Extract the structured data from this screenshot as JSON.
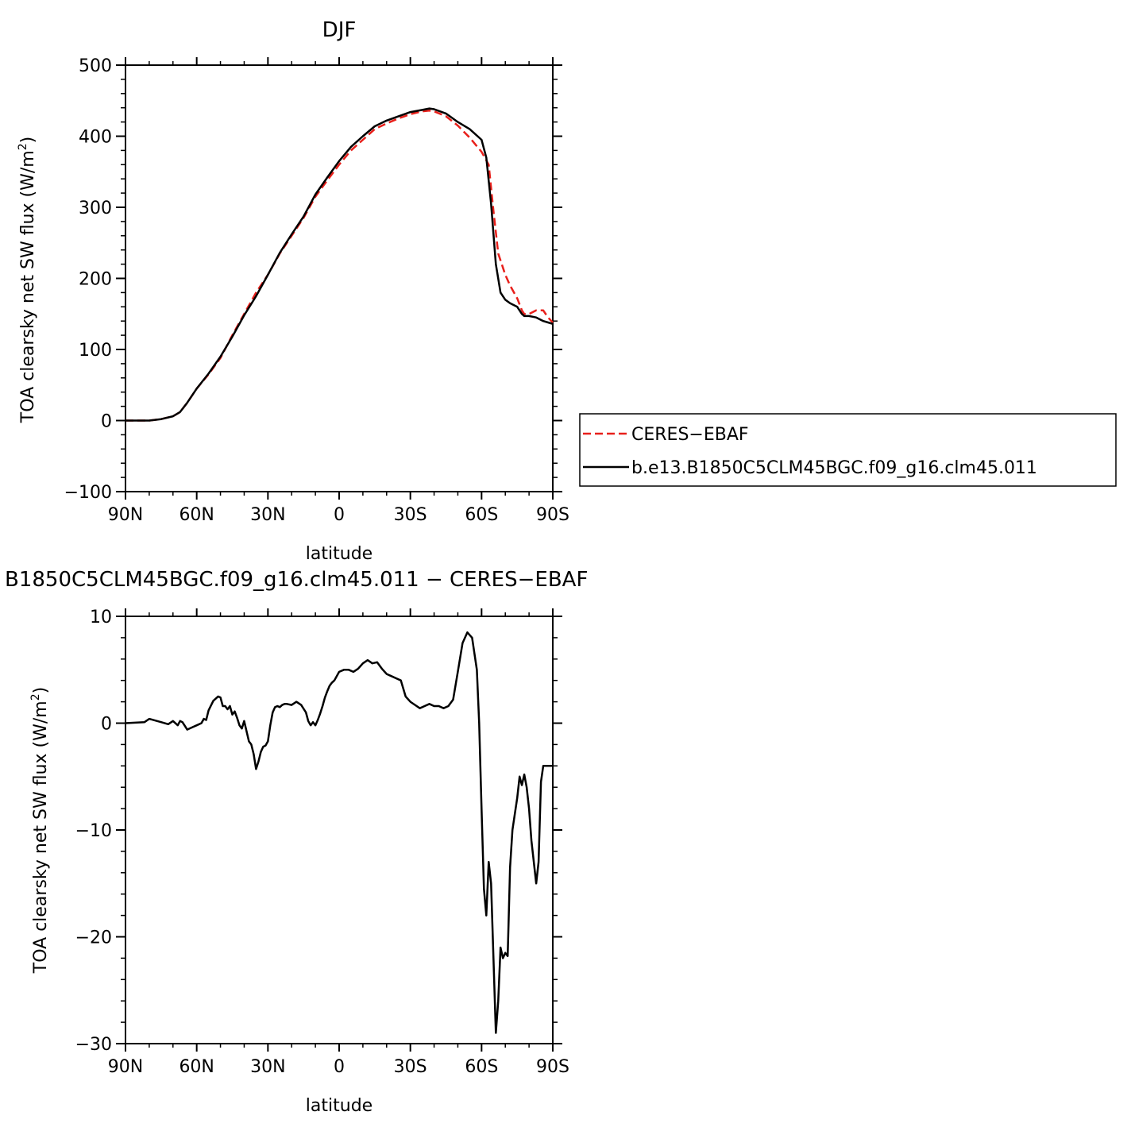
{
  "chart_data": [
    {
      "type": "line",
      "title": "DJF",
      "xlabel": "latitude",
      "ylabel": "TOA clearsky net SW flux (W/m",
      "ylabel_sup": "2",
      "ylabel_end": ")",
      "xlim": [
        90,
        -90
      ],
      "ylim": [
        -100,
        500
      ],
      "x_ticks": [
        {
          "value": 90,
          "label": "90N"
        },
        {
          "value": 60,
          "label": "60N"
        },
        {
          "value": 30,
          "label": "30N"
        },
        {
          "value": 0,
          "label": "0"
        },
        {
          "value": -30,
          "label": "30S"
        },
        {
          "value": -60,
          "label": "60S"
        },
        {
          "value": -90,
          "label": "90S"
        }
      ],
      "y_ticks": [
        {
          "value": 500,
          "label": "500"
        },
        {
          "value": 400,
          "label": "400"
        },
        {
          "value": 300,
          "label": "300"
        },
        {
          "value": 200,
          "label": "200"
        },
        {
          "value": 100,
          "label": "100"
        },
        {
          "value": 0,
          "label": "0"
        },
        {
          "value": -100,
          "label": "−100"
        }
      ],
      "grid": false,
      "legend_position": "outside-right",
      "series": [
        {
          "name": "CERES−EBAF",
          "color": "#e8201b",
          "dash": "dashed",
          "x": [
            90,
            85,
            80,
            75,
            70,
            67,
            64,
            60,
            55,
            50,
            45,
            40,
            35,
            30,
            25,
            20,
            15,
            10,
            5,
            0,
            -5,
            -10,
            -15,
            -20,
            -25,
            -30,
            -35,
            -38,
            -40,
            -45,
            -50,
            -55,
            -60,
            -63,
            -65,
            -67,
            -70,
            -72,
            -75,
            -77,
            -78,
            -80,
            -83,
            -86,
            -88,
            -90
          ],
          "y": [
            0,
            0,
            0,
            2,
            6,
            12,
            25,
            45,
            65,
            88,
            120,
            150,
            180,
            205,
            235,
            260,
            285,
            315,
            338,
            360,
            380,
            395,
            410,
            418,
            425,
            431,
            435,
            436,
            435,
            428,
            415,
            398,
            378,
            360,
            295,
            235,
            205,
            190,
            172,
            155,
            150,
            150,
            155,
            155,
            145,
            138
          ]
        },
        {
          "name": "b.e13.B1850C5CLM45BGC.f09_g16.clm45.011",
          "color": "#000000",
          "dash": "solid",
          "x": [
            90,
            85,
            80,
            75,
            70,
            67,
            64,
            60,
            55,
            50,
            45,
            40,
            35,
            30,
            25,
            20,
            15,
            10,
            5,
            0,
            -5,
            -10,
            -15,
            -20,
            -25,
            -30,
            -35,
            -38,
            -40,
            -45,
            -50,
            -55,
            -60,
            -62,
            -64,
            -66,
            -68,
            -70,
            -72,
            -75,
            -77,
            -78,
            -80,
            -83,
            -86,
            -88,
            -90
          ],
          "y": [
            0,
            0,
            0,
            2,
            6,
            12,
            25,
            45,
            66,
            90,
            118,
            148,
            175,
            205,
            236,
            262,
            287,
            318,
            342,
            365,
            385,
            400,
            414,
            422,
            428,
            434,
            437,
            439,
            438,
            432,
            420,
            410,
            395,
            370,
            305,
            220,
            180,
            170,
            165,
            160,
            150,
            147,
            147,
            145,
            140,
            138,
            136
          ]
        }
      ]
    },
    {
      "type": "line",
      "title": "B1850C5CLM45BGC.f09_g16.clm45.011 − CERES−EBAF",
      "xlabel": "latitude",
      "ylabel": "TOA clearsky net SW flux (W/m",
      "ylabel_sup": "2",
      "ylabel_end": ")",
      "xlim": [
        90,
        -90
      ],
      "ylim": [
        -30,
        10
      ],
      "x_ticks": [
        {
          "value": 90,
          "label": "90N"
        },
        {
          "value": 60,
          "label": "60N"
        },
        {
          "value": 30,
          "label": "30N"
        },
        {
          "value": 0,
          "label": "0"
        },
        {
          "value": -30,
          "label": "30S"
        },
        {
          "value": -60,
          "label": "60S"
        },
        {
          "value": -90,
          "label": "90S"
        }
      ],
      "y_ticks": [
        {
          "value": 10,
          "label": "10"
        },
        {
          "value": 0,
          "label": "0"
        },
        {
          "value": -10,
          "label": "−10"
        },
        {
          "value": -20,
          "label": "−20"
        },
        {
          "value": -30,
          "label": "−30"
        }
      ],
      "grid": false,
      "series": [
        {
          "name": "",
          "color": "#000000",
          "dash": "solid",
          "x": [
            90,
            82,
            80,
            75,
            72,
            70,
            68,
            67,
            66,
            64,
            62,
            60,
            58,
            57,
            56,
            55,
            53,
            51,
            50,
            49,
            48,
            47,
            46,
            45,
            44,
            43,
            42,
            41,
            40,
            38,
            37,
            36,
            35,
            34,
            33,
            32,
            31,
            30,
            29,
            28,
            27,
            26,
            25,
            24,
            23,
            22,
            20,
            18,
            16,
            14,
            13,
            12,
            11,
            10,
            9,
            8,
            7,
            6,
            5,
            4,
            3,
            2,
            0,
            -2,
            -4,
            -6,
            -8,
            -10,
            -12,
            -14,
            -16,
            -18,
            -20,
            -22,
            -24,
            -26,
            -28,
            -30,
            -32,
            -34,
            -36,
            -38,
            -40,
            -42,
            -44,
            -46,
            -48,
            -50,
            -52,
            -54,
            -56,
            -58,
            -59,
            -60,
            -61,
            -62,
            -63,
            -64,
            -65,
            -66,
            -67,
            -68,
            -69,
            -70,
            -71,
            -72,
            -73,
            -74,
            -75,
            -76,
            -77,
            -78,
            -79,
            -80,
            -81,
            -82,
            -83,
            -84,
            -85,
            -86,
            -87,
            -88,
            -89,
            -90
          ],
          "y": [
            0,
            0.1,
            0.4,
            0.1,
            -0.1,
            0.2,
            -0.2,
            0.2,
            0.1,
            -0.6,
            -0.4,
            -0.2,
            0,
            0.4,
            0.3,
            1.2,
            2.1,
            2.5,
            2.4,
            1.6,
            1.6,
            1.3,
            1.6,
            0.8,
            1.1,
            0.5,
            -0.2,
            -0.5,
            0.2,
            -1.7,
            -2.0,
            -2.9,
            -4.3,
            -3.6,
            -2.7,
            -2.2,
            -2.1,
            -1.7,
            -0.2,
            1.0,
            1.5,
            1.6,
            1.5,
            1.7,
            1.8,
            1.8,
            1.7,
            2.0,
            1.7,
            1.0,
            0.2,
            -0.2,
            0.1,
            -0.2,
            0.3,
            0.9,
            1.6,
            2.4,
            3.0,
            3.5,
            3.8,
            4.0,
            4.8,
            5.0,
            5.0,
            4.8,
            5.1,
            5.6,
            5.9,
            5.6,
            5.7,
            5.1,
            4.6,
            4.4,
            4.2,
            4.0,
            2.5,
            2.0,
            1.7,
            1.4,
            1.6,
            1.8,
            1.6,
            1.6,
            1.4,
            1.6,
            2.2,
            4.8,
            7.5,
            8.5,
            8.0,
            5.0,
            0,
            -8.0,
            -15.5,
            -18.0,
            -13.0,
            -15.0,
            -22.0,
            -29.0,
            -26.0,
            -21.0,
            -22.0,
            -21.5,
            -21.8,
            -13.5,
            -10.0,
            -8.5,
            -7.0,
            -5.0,
            -5.8,
            -4.8,
            -6.0,
            -8.0,
            -11.0,
            -13.0,
            -15.0,
            -13.0,
            -5.5,
            -4.0,
            -4.0,
            -4.0,
            -4.0,
            -4.0
          ]
        }
      ]
    }
  ]
}
